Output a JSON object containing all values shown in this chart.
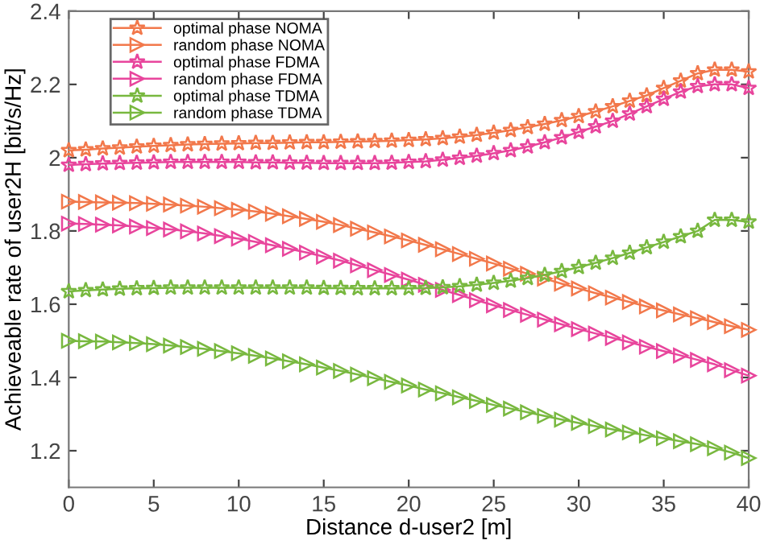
{
  "chart_data": {
    "type": "line",
    "xlabel": "Distance d-user2 [m]",
    "ylabel": "Achieveable rate of user2H [bit/s/Hz]",
    "x": [
      0,
      1,
      2,
      3,
      4,
      5,
      6,
      7,
      8,
      9,
      10,
      11,
      12,
      13,
      14,
      15,
      16,
      17,
      18,
      19,
      20,
      21,
      22,
      23,
      24,
      25,
      26,
      27,
      28,
      29,
      30,
      31,
      32,
      33,
      34,
      35,
      36,
      37,
      38,
      39,
      40
    ],
    "xlim": [
      0,
      40
    ],
    "xticks": [
      0,
      5,
      10,
      15,
      20,
      25,
      30,
      35,
      40
    ],
    "ylim": [
      1.1,
      2.4
    ],
    "yticks": [
      1.2,
      1.4,
      1.6,
      1.8,
      2,
      2.2,
      2.4
    ],
    "grid": false,
    "legend": "top left",
    "series": [
      {
        "name": "optimal phase NOMA",
        "color": "#f2784b",
        "marker": "star",
        "values": [
          2.02,
          2.022,
          2.025,
          2.027,
          2.03,
          2.032,
          2.034,
          2.036,
          2.037,
          2.038,
          2.039,
          2.04,
          2.04,
          2.041,
          2.042,
          2.042,
          2.043,
          2.044,
          2.045,
          2.046,
          2.048,
          2.05,
          2.053,
          2.057,
          2.062,
          2.068,
          2.075,
          2.083,
          2.092,
          2.102,
          2.113,
          2.126,
          2.14,
          2.155,
          2.17,
          2.19,
          2.21,
          2.23,
          2.24,
          2.24,
          2.235
        ]
      },
      {
        "name": "random phase NOMA",
        "color": "#f2784b",
        "marker": "triangle",
        "values": [
          1.88,
          1.879,
          1.878,
          1.877,
          1.876,
          1.874,
          1.872,
          1.869,
          1.866,
          1.862,
          1.858,
          1.853,
          1.847,
          1.84,
          1.833,
          1.825,
          1.816,
          1.806,
          1.796,
          1.785,
          1.774,
          1.762,
          1.75,
          1.737,
          1.724,
          1.711,
          1.697,
          1.683,
          1.67,
          1.656,
          1.643,
          1.63,
          1.618,
          1.606,
          1.594,
          1.583,
          1.572,
          1.562,
          1.551,
          1.54,
          1.53
        ]
      },
      {
        "name": "optimal phase FDMA",
        "color": "#e8459c",
        "marker": "star",
        "values": [
          1.98,
          1.982,
          1.984,
          1.985,
          1.986,
          1.987,
          1.988,
          1.988,
          1.988,
          1.988,
          1.988,
          1.987,
          1.987,
          1.986,
          1.986,
          1.985,
          1.985,
          1.985,
          1.985,
          1.986,
          1.988,
          1.99,
          1.994,
          1.999,
          2.005,
          2.012,
          2.02,
          2.03,
          2.042,
          2.055,
          2.07,
          2.085,
          2.1,
          2.12,
          2.14,
          2.16,
          2.18,
          2.195,
          2.2,
          2.2,
          2.19
        ]
      },
      {
        "name": "random phase FDMA",
        "color": "#e8459c",
        "marker": "triangle",
        "values": [
          1.82,
          1.819,
          1.817,
          1.815,
          1.812,
          1.808,
          1.804,
          1.799,
          1.793,
          1.786,
          1.779,
          1.77,
          1.761,
          1.751,
          1.741,
          1.73,
          1.719,
          1.706,
          1.693,
          1.68,
          1.667,
          1.653,
          1.639,
          1.625,
          1.611,
          1.597,
          1.584,
          1.571,
          1.558,
          1.545,
          1.532,
          1.52,
          1.508,
          1.496,
          1.484,
          1.472,
          1.46,
          1.448,
          1.436,
          1.42,
          1.405
        ]
      },
      {
        "name": "optimal phase TDMA",
        "color": "#78b83f",
        "marker": "star",
        "values": [
          1.635,
          1.638,
          1.64,
          1.642,
          1.643,
          1.644,
          1.645,
          1.645,
          1.645,
          1.645,
          1.645,
          1.645,
          1.645,
          1.645,
          1.645,
          1.644,
          1.644,
          1.643,
          1.643,
          1.643,
          1.643,
          1.644,
          1.646,
          1.649,
          1.653,
          1.658,
          1.664,
          1.671,
          1.68,
          1.69,
          1.701,
          1.713,
          1.726,
          1.74,
          1.755,
          1.77,
          1.785,
          1.8,
          1.83,
          1.83,
          1.825
        ]
      },
      {
        "name": "random phase TDMA",
        "color": "#78b83f",
        "marker": "triangle",
        "values": [
          1.5,
          1.499,
          1.498,
          1.496,
          1.494,
          1.491,
          1.487,
          1.483,
          1.478,
          1.472,
          1.466,
          1.459,
          1.452,
          1.444,
          1.436,
          1.427,
          1.418,
          1.408,
          1.398,
          1.388,
          1.378,
          1.367,
          1.357,
          1.346,
          1.336,
          1.325,
          1.315,
          1.305,
          1.295,
          1.285,
          1.276,
          1.267,
          1.258,
          1.25,
          1.242,
          1.234,
          1.226,
          1.218,
          1.207,
          1.195,
          1.18
        ]
      }
    ]
  }
}
